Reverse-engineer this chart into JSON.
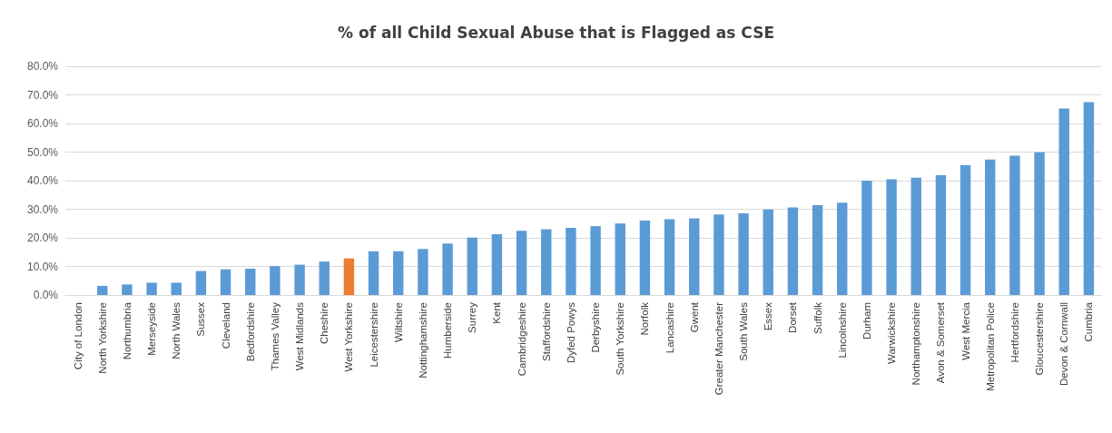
{
  "chart_data": {
    "type": "bar",
    "title": "% of all Child Sexual Abuse that is Flagged as CSE",
    "categories": [
      "City of London",
      "North Yorkshire",
      "Northumbria",
      "Merseyside",
      "North Wales",
      "Sussex",
      "Cleveland",
      "Bedfordshire",
      "Thames Valley",
      "West Midlands",
      "Cheshire",
      "West Yorkshire",
      "Leicestershire",
      "Wiltshire",
      "Nottinghamshire",
      "Humberside",
      "Surrey",
      "Kent",
      "Cambridgeshire",
      "Staffordshire",
      "Dyfed Powys",
      "Derbyshire",
      "South Yorkshire",
      "Norfolk",
      "Lancashire",
      "Gwent",
      "Greater Manchester",
      "South Wales",
      "Essex",
      "Dorset",
      "Suffolk",
      "Lincolnshire",
      "Durham",
      "Warwickshire",
      "Northamptonshire",
      "Avon & Somerset",
      "West Mercia",
      "Metropolitan Police",
      "Hertfordshire",
      "Gloucestershire",
      "Devon & Cornwall",
      "Cumbria"
    ],
    "values": [
      0,
      3.2,
      3.7,
      4.3,
      4.3,
      8.4,
      9.0,
      9.2,
      10.1,
      10.6,
      11.7,
      12.8,
      15.3,
      15.3,
      16.1,
      18.0,
      20.1,
      21.3,
      22.5,
      23.0,
      23.5,
      24.1,
      25.0,
      26.0,
      26.5,
      26.8,
      28.2,
      28.6,
      29.9,
      30.6,
      31.4,
      32.3,
      40.0,
      40.5,
      41.0,
      41.9,
      45.4,
      47.4,
      48.7,
      49.9,
      65.2,
      67.5
    ],
    "colors": [
      "#5b9bd5",
      "#5b9bd5",
      "#5b9bd5",
      "#5b9bd5",
      "#5b9bd5",
      "#5b9bd5",
      "#5b9bd5",
      "#5b9bd5",
      "#5b9bd5",
      "#5b9bd5",
      "#5b9bd5",
      "#ed7d31",
      "#5b9bd5",
      "#5b9bd5",
      "#5b9bd5",
      "#5b9bd5",
      "#5b9bd5",
      "#5b9bd5",
      "#5b9bd5",
      "#5b9bd5",
      "#5b9bd5",
      "#5b9bd5",
      "#5b9bd5",
      "#5b9bd5",
      "#5b9bd5",
      "#5b9bd5",
      "#5b9bd5",
      "#5b9bd5",
      "#5b9bd5",
      "#5b9bd5",
      "#5b9bd5",
      "#5b9bd5",
      "#5b9bd5",
      "#5b9bd5",
      "#5b9bd5",
      "#5b9bd5",
      "#5b9bd5",
      "#5b9bd5",
      "#5b9bd5",
      "#5b9bd5",
      "#5b9bd5",
      "#5b9bd5"
    ],
    "ylim": [
      0,
      80
    ],
    "yticks": [
      {
        "value": 0,
        "label": "0.0%"
      },
      {
        "value": 10,
        "label": "10.0%"
      },
      {
        "value": 20,
        "label": "20.0%"
      },
      {
        "value": 30,
        "label": "30.0%"
      },
      {
        "value": 40,
        "label": "40.0%"
      },
      {
        "value": 50,
        "label": "50.0%"
      },
      {
        "value": 60,
        "label": "60.0%"
      },
      {
        "value": 70,
        "label": "70.0%"
      },
      {
        "value": 80,
        "label": "80.0%"
      }
    ],
    "grid": "y"
  }
}
